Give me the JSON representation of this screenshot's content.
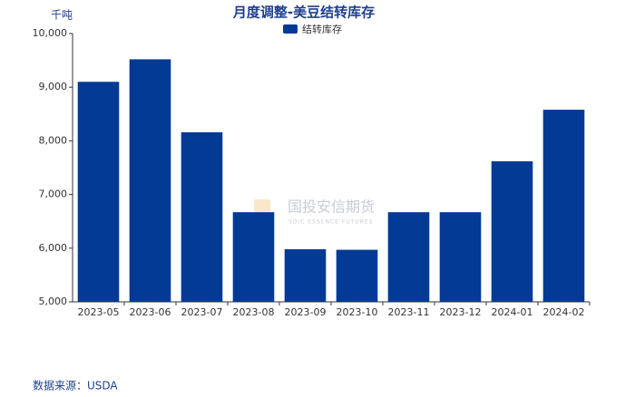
{
  "chart_data": {
    "type": "bar",
    "title": "月度调整-美豆结转库存",
    "y_label": "千吨",
    "source": "数据来源：USDA",
    "watermark": "国投安信期货",
    "watermark_sub": "SDIC ESSENCE FUTURES",
    "categories": [
      "2023-05",
      "2023-06",
      "2023-07",
      "2023-08",
      "2023-09",
      "2023-10",
      "2023-11",
      "2023-12",
      "2024-01",
      "2024-02"
    ],
    "series": [
      {
        "name": "结转库存",
        "color": "#023a95",
        "values": [
          9100,
          9520,
          8160,
          6670,
          5980,
          5970,
          6670,
          6670,
          7620,
          8580
        ]
      }
    ],
    "ylim": [
      5000,
      10000
    ],
    "yticks": [
      {
        "value": 5000,
        "label": "5,000"
      },
      {
        "value": 6000,
        "label": "6,000"
      },
      {
        "value": 7000,
        "label": "7,000"
      },
      {
        "value": 8000,
        "label": "8,000"
      },
      {
        "value": 9000,
        "label": "9,000"
      },
      {
        "value": 10000,
        "label": "10,000"
      }
    ],
    "grid": false,
    "legend": "top"
  }
}
